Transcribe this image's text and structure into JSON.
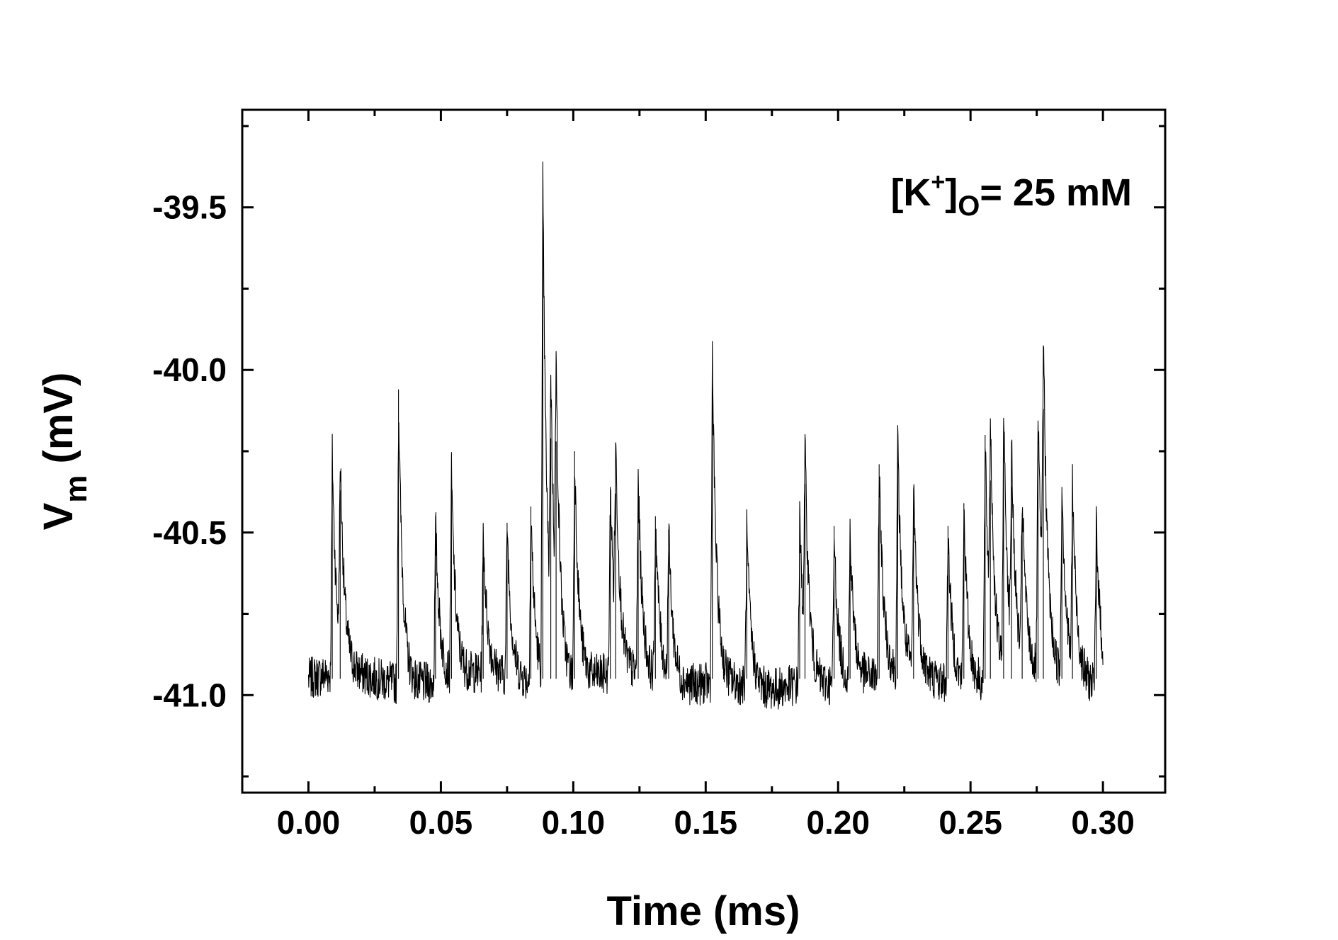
{
  "chart_data": {
    "type": "line",
    "xlabel": "Time (ms)",
    "ylabel": {
      "base": "V",
      "sub": "m",
      "rest": " (mV)"
    },
    "annotation": {
      "prefix": "[K",
      "sup": "+",
      "close": "]",
      "sub": "O",
      "rest": "= 25 mM"
    },
    "xlim": [
      -0.025,
      0.3235
    ],
    "ylim": [
      -41.3,
      -39.2
    ],
    "x_ticks": [
      0.0,
      0.05,
      0.1,
      0.15,
      0.2,
      0.25,
      0.3
    ],
    "x_tick_labels": [
      "0.00",
      "0.05",
      "0.10",
      "0.15",
      "0.20",
      "0.25",
      "0.30"
    ],
    "y_ticks": [
      -41.0,
      -40.5,
      -40.0,
      -39.5
    ],
    "y_tick_labels": [
      "-41.0",
      "-40.5",
      "-40.0",
      "-39.5"
    ],
    "grid": false,
    "baseline": -40.95,
    "x_range": [
      0.0,
      0.3
    ],
    "series": [
      {
        "color": "#000000",
        "spikes": [
          [
            0.009,
            -40.27
          ],
          [
            0.012,
            -40.37
          ],
          [
            0.034,
            -40.06
          ],
          [
            0.048,
            -40.45
          ],
          [
            0.054,
            -40.33
          ],
          [
            0.066,
            -40.52
          ],
          [
            0.075,
            -40.47
          ],
          [
            0.084,
            -40.42
          ],
          [
            0.0885,
            -39.43
          ],
          [
            0.0915,
            -40.21
          ],
          [
            0.0935,
            -40.22
          ],
          [
            0.1005,
            -40.25
          ],
          [
            0.114,
            -40.36
          ],
          [
            0.116,
            -40.38
          ],
          [
            0.1245,
            -40.34
          ],
          [
            0.131,
            -40.45
          ],
          [
            0.136,
            -40.49
          ],
          [
            0.1525,
            -39.94
          ],
          [
            0.1655,
            -40.47
          ],
          [
            0.1855,
            -40.44
          ],
          [
            0.1875,
            -40.35
          ],
          [
            0.1985,
            -40.48
          ],
          [
            0.2045,
            -40.49
          ],
          [
            0.2155,
            -40.29
          ],
          [
            0.2225,
            -40.23
          ],
          [
            0.2285,
            -40.37
          ],
          [
            0.2415,
            -40.48
          ],
          [
            0.2475,
            -40.41
          ],
          [
            0.2555,
            -40.2
          ],
          [
            0.2575,
            -40.34
          ],
          [
            0.2625,
            -40.15
          ],
          [
            0.2655,
            -40.36
          ],
          [
            0.2695,
            -40.44
          ],
          [
            0.2755,
            -40.16
          ],
          [
            0.2775,
            -40.12
          ],
          [
            0.2845,
            -40.36
          ],
          [
            0.2885,
            -40.39
          ],
          [
            0.2975,
            -40.44
          ]
        ]
      }
    ]
  }
}
